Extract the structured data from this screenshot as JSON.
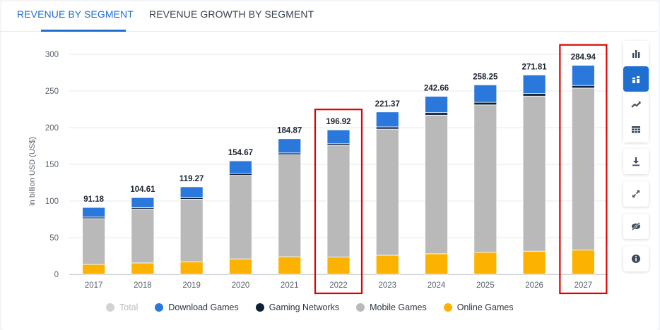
{
  "tabs": [
    {
      "label": "REVENUE BY SEGMENT",
      "active": true
    },
    {
      "label": "REVENUE GROWTH BY SEGMENT",
      "active": false
    }
  ],
  "toolbar": {
    "buttons": [
      {
        "icon": "bar-chart-icon",
        "active": false
      },
      {
        "icon": "stacked-bar-icon",
        "active": true
      },
      {
        "icon": "trend-line-icon",
        "active": false
      },
      {
        "icon": "table-grid-icon",
        "active": false
      },
      {
        "icon": "download-icon",
        "active": false
      },
      {
        "icon": "fullscreen-icon",
        "active": false
      },
      {
        "icon": "hide-eye-icon",
        "active": false
      },
      {
        "icon": "info-icon",
        "active": false
      }
    ]
  },
  "colors": {
    "accent": "#1f6fd1",
    "download_games": "#2b78dc",
    "gaming_networks": "#0f2138",
    "mobile_games": "#b9b9b9",
    "online_games": "#fbb200",
    "total": "#cfd2d6",
    "highlight_box": "#e00000"
  },
  "chart_data": {
    "type": "bar",
    "stacked": true,
    "categories": [
      "2017",
      "2018",
      "2019",
      "2020",
      "2021",
      "2022",
      "2023",
      "2024",
      "2025",
      "2026",
      "2027"
    ],
    "ylabel": "in billion USD (US$)",
    "ylim": [
      0,
      300
    ],
    "yticks": [
      0,
      50,
      100,
      150,
      200,
      250,
      300
    ],
    "grid": true,
    "legend_position": "bottom",
    "highlighted_categories": [
      "2022",
      "2027"
    ],
    "totals": [
      91.18,
      104.61,
      119.27,
      154.67,
      184.87,
      196.92,
      221.37,
      242.66,
      258.25,
      271.81,
      284.94
    ],
    "series": [
      {
        "name": "Online Games",
        "color": "#fbb200",
        "values": [
          13.5,
          15.5,
          17.0,
          21.0,
          24.0,
          23.5,
          26.0,
          28.0,
          30.0,
          31.5,
          33.0
        ]
      },
      {
        "name": "Mobile Games",
        "color": "#b9b9b9",
        "values": [
          62.5,
          73.5,
          85.5,
          114.0,
          139.0,
          152.0,
          172.0,
          189.0,
          201.0,
          211.5,
          221.0
        ]
      },
      {
        "name": "Gaming Networks",
        "color": "#0f2138",
        "values": [
          2.0,
          2.0,
          2.0,
          2.5,
          2.5,
          2.5,
          3.0,
          3.5,
          3.5,
          3.5,
          3.5
        ]
      },
      {
        "name": "Download Games",
        "color": "#2b78dc",
        "values": [
          13.18,
          13.61,
          14.77,
          17.17,
          19.37,
          18.92,
          20.37,
          22.16,
          23.75,
          25.31,
          27.44
        ]
      }
    ],
    "legend": [
      {
        "name": "Total",
        "color": "#cfd2d6",
        "muted": true
      },
      {
        "name": "Download Games",
        "color": "#2b78dc",
        "muted": false
      },
      {
        "name": "Gaming Networks",
        "color": "#0f2138",
        "muted": false
      },
      {
        "name": "Mobile Games",
        "color": "#b9b9b9",
        "muted": false
      },
      {
        "name": "Online Games",
        "color": "#fbb200",
        "muted": false
      }
    ]
  }
}
